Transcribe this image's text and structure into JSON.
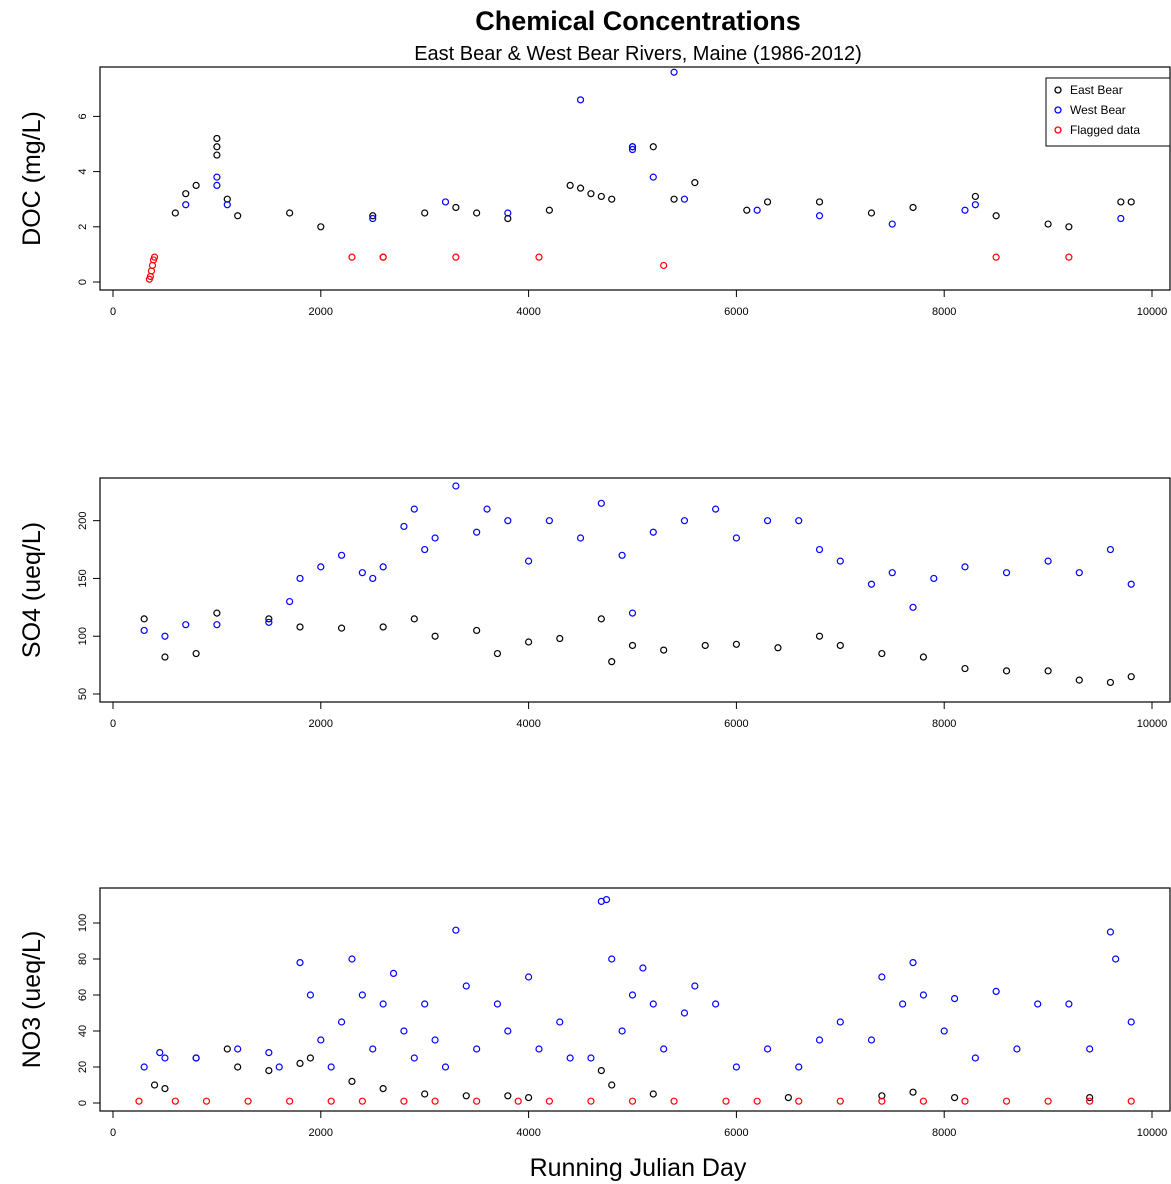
{
  "title": "Chemical Concentrations",
  "subtitle": "East Bear & West Bear Rivers, Maine (1986-2012)",
  "xlabel": "Running Julian Day",
  "legend": {
    "position": "top-right",
    "items": [
      {
        "label": "East Bear",
        "color": "#000000"
      },
      {
        "label": "West Bear",
        "color": "#0000ff"
      },
      {
        "label": "Flagged data",
        "color": "#ff0000"
      }
    ]
  },
  "chart_data": [
    {
      "type": "scatter",
      "ylabel": "DOC (mg/L)",
      "xlim": [
        0,
        10000
      ],
      "ylim": [
        0,
        7.5
      ],
      "xticks": [
        "0",
        "2000",
        "4000",
        "6000",
        "8000",
        "10000"
      ],
      "yticks": [
        "0",
        "2",
        "4",
        "6"
      ],
      "series": [
        {
          "name": "East Bear",
          "color": "#000000",
          "x": [
            600,
            700,
            800,
            1000,
            1000,
            1000,
            1100,
            1200,
            1700,
            2000,
            2500,
            3000,
            3300,
            3500,
            3800,
            4200,
            4400,
            4500,
            4600,
            4700,
            4800,
            5000,
            5200,
            5400,
            5600,
            6100,
            6300,
            6800,
            7300,
            7700,
            8300,
            8500,
            9000,
            9200,
            9700,
            9800
          ],
          "y": [
            2.5,
            3.2,
            3.5,
            5.2,
            4.9,
            4.6,
            3.0,
            2.4,
            2.5,
            2.0,
            2.4,
            2.5,
            2.7,
            2.5,
            2.3,
            2.6,
            3.5,
            3.4,
            3.2,
            3.1,
            3.0,
            4.9,
            4.9,
            3.0,
            3.6,
            2.6,
            2.9,
            2.9,
            2.5,
            2.7,
            3.1,
            2.4,
            2.1,
            2.0,
            2.9,
            2.9
          ]
        },
        {
          "name": "West Bear",
          "color": "#0000ff",
          "x": [
            700,
            1000,
            1000,
            1100,
            2500,
            3200,
            3800,
            4500,
            5000,
            5000,
            5200,
            5400,
            5500,
            6200,
            6800,
            7500,
            8200,
            8300,
            9700
          ],
          "y": [
            2.8,
            3.8,
            3.5,
            2.8,
            2.3,
            2.9,
            2.5,
            6.6,
            4.8,
            4.9,
            3.8,
            7.6,
            3.0,
            2.6,
            2.4,
            2.1,
            2.6,
            2.8,
            2.3
          ]
        },
        {
          "name": "Flagged data",
          "color": "#ff0000",
          "x": [
            350,
            360,
            370,
            380,
            390,
            400,
            2300,
            2600,
            2600,
            3300,
            4100,
            5300,
            8500,
            9200
          ],
          "y": [
            0.1,
            0.2,
            0.4,
            0.6,
            0.8,
            0.9,
            0.9,
            0.9,
            0.9,
            0.9,
            0.9,
            0.6,
            0.9,
            0.9
          ]
        }
      ]
    },
    {
      "type": "scatter",
      "ylabel": "SO4 (ueq/L)",
      "xlim": [
        0,
        10000
      ],
      "ylim": [
        50,
        230
      ],
      "xticks": [
        "0",
        "2000",
        "4000",
        "6000",
        "8000",
        "10000"
      ],
      "yticks": [
        "50",
        "100",
        "150",
        "200"
      ],
      "series": [
        {
          "name": "East Bear",
          "color": "#000000",
          "x": [
            300,
            500,
            800,
            1000,
            1500,
            1800,
            2200,
            2600,
            2900,
            3100,
            3500,
            3700,
            4000,
            4300,
            4700,
            4800,
            5000,
            5300,
            5700,
            6000,
            6400,
            6800,
            7000,
            7400,
            7800,
            8200,
            8600,
            9000,
            9300,
            9600,
            9800
          ],
          "y": [
            115,
            82,
            85,
            120,
            115,
            108,
            107,
            108,
            115,
            100,
            105,
            85,
            95,
            98,
            115,
            78,
            92,
            88,
            92,
            93,
            90,
            100,
            92,
            85,
            82,
            72,
            70,
            70,
            62,
            60,
            65
          ]
        },
        {
          "name": "West Bear",
          "color": "#0000ff",
          "x": [
            300,
            500,
            700,
            1000,
            1500,
            1700,
            1800,
            2000,
            2200,
            2400,
            2500,
            2600,
            2800,
            2900,
            3000,
            3100,
            3300,
            3500,
            3600,
            3800,
            4000,
            4200,
            4500,
            4700,
            4900,
            5000,
            5200,
            5500,
            5800,
            6000,
            6300,
            6600,
            6800,
            7000,
            7300,
            7500,
            7700,
            7900,
            8200,
            8600,
            9000,
            9300,
            9600,
            9800
          ],
          "y": [
            105,
            100,
            110,
            110,
            112,
            130,
            150,
            160,
            170,
            155,
            150,
            160,
            195,
            210,
            175,
            185,
            230,
            190,
            210,
            200,
            165,
            200,
            185,
            215,
            170,
            120,
            190,
            200,
            210,
            185,
            200,
            200,
            175,
            165,
            145,
            155,
            125,
            150,
            160,
            155,
            165,
            155,
            175,
            145
          ]
        }
      ]
    },
    {
      "type": "scatter",
      "ylabel": "NO3 (ueq/L)",
      "xlim": [
        0,
        10000
      ],
      "ylim": [
        0,
        115
      ],
      "xticks": [
        "0",
        "2000",
        "4000",
        "6000",
        "8000",
        "10000"
      ],
      "yticks": [
        "0",
        "20",
        "40",
        "60",
        "80",
        "100"
      ],
      "series": [
        {
          "name": "East Bear",
          "color": "#000000",
          "x": [
            400,
            500,
            800,
            1100,
            1200,
            1500,
            1800,
            1900,
            2300,
            2600,
            3000,
            3400,
            3800,
            4000,
            4700,
            4800,
            5200,
            6500,
            7400,
            7700,
            8100,
            9400
          ],
          "y": [
            10,
            8,
            25,
            30,
            20,
            18,
            22,
            25,
            12,
            8,
            5,
            4,
            4,
            3,
            18,
            10,
            5,
            3,
            4,
            6,
            3,
            3
          ]
        },
        {
          "name": "West Bear",
          "color": "#0000ff",
          "x": [
            300,
            450,
            500,
            800,
            1200,
            1500,
            1600,
            1800,
            1900,
            2000,
            2100,
            2200,
            2300,
            2400,
            2500,
            2600,
            2700,
            2800,
            2900,
            3000,
            3100,
            3200,
            3300,
            3400,
            3500,
            3700,
            3800,
            4000,
            4100,
            4300,
            4400,
            4600,
            4700,
            4750,
            4800,
            4900,
            5000,
            5100,
            5200,
            5300,
            5500,
            5600,
            5800,
            6000,
            6300,
            6600,
            6800,
            7000,
            7300,
            7400,
            7600,
            7700,
            7800,
            8000,
            8100,
            8300,
            8500,
            8700,
            8900,
            9200,
            9400,
            9600,
            9650,
            9800
          ],
          "y": [
            20,
            28,
            25,
            25,
            30,
            28,
            20,
            78,
            60,
            35,
            20,
            45,
            80,
            60,
            30,
            55,
            72,
            40,
            25,
            55,
            35,
            20,
            96,
            65,
            30,
            55,
            40,
            70,
            30,
            45,
            25,
            25,
            112,
            113,
            80,
            40,
            60,
            75,
            55,
            30,
            50,
            65,
            55,
            20,
            30,
            20,
            35,
            45,
            35,
            70,
            55,
            78,
            60,
            40,
            58,
            25,
            62,
            30,
            55,
            55,
            30,
            95,
            80,
            45
          ]
        },
        {
          "name": "Flagged data",
          "color": "#ff0000",
          "x": [
            250,
            600,
            900,
            1300,
            1700,
            2100,
            2400,
            2800,
            3100,
            3500,
            3900,
            4200,
            4600,
            5000,
            5400,
            5900,
            6200,
            6600,
            7000,
            7400,
            7800,
            8200,
            8600,
            9000,
            9400,
            9800
          ],
          "y": [
            1,
            1,
            1,
            1,
            1,
            1,
            1,
            1,
            1,
            1,
            1,
            1,
            1,
            1,
            1,
            1,
            1,
            1,
            1,
            1,
            1,
            1,
            1,
            1,
            1,
            1
          ]
        }
      ]
    }
  ]
}
